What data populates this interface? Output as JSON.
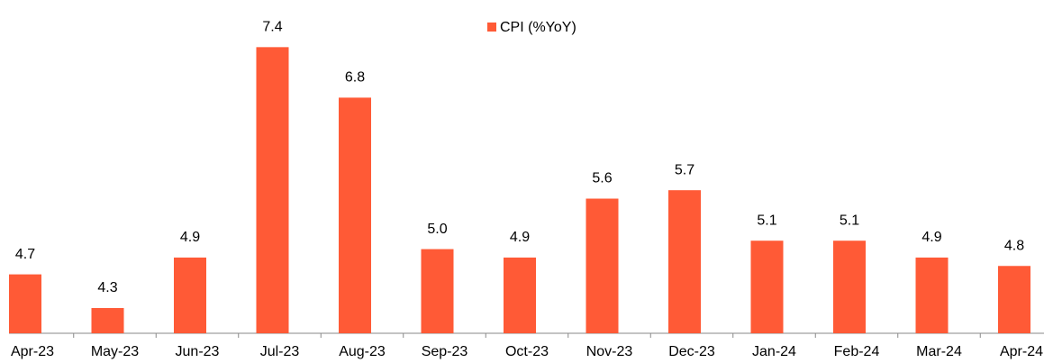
{
  "chart_data": {
    "type": "bar",
    "categories": [
      "Apr-23",
      "May-23",
      "Jun-23",
      "Jul-23",
      "Aug-23",
      "Sep-23",
      "Oct-23",
      "Nov-23",
      "Dec-23",
      "Jan-24",
      "Feb-24",
      "Mar-24",
      "Apr-24"
    ],
    "series": [
      {
        "name": "CPI (%YoY)",
        "color": "#ff5a36",
        "values": [
          4.7,
          4.3,
          4.9,
          7.4,
          6.8,
          5.0,
          4.9,
          5.6,
          5.7,
          5.1,
          5.1,
          4.9,
          4.8
        ],
        "value_labels": [
          "4.7",
          "4.3",
          "4.9",
          "7.4",
          "6.8",
          "5.0",
          "4.9",
          "5.6",
          "5.7",
          "5.1",
          "5.1",
          "4.9",
          "4.8"
        ]
      }
    ],
    "ylim": [
      4,
      7.5
    ],
    "legend": "top"
  }
}
